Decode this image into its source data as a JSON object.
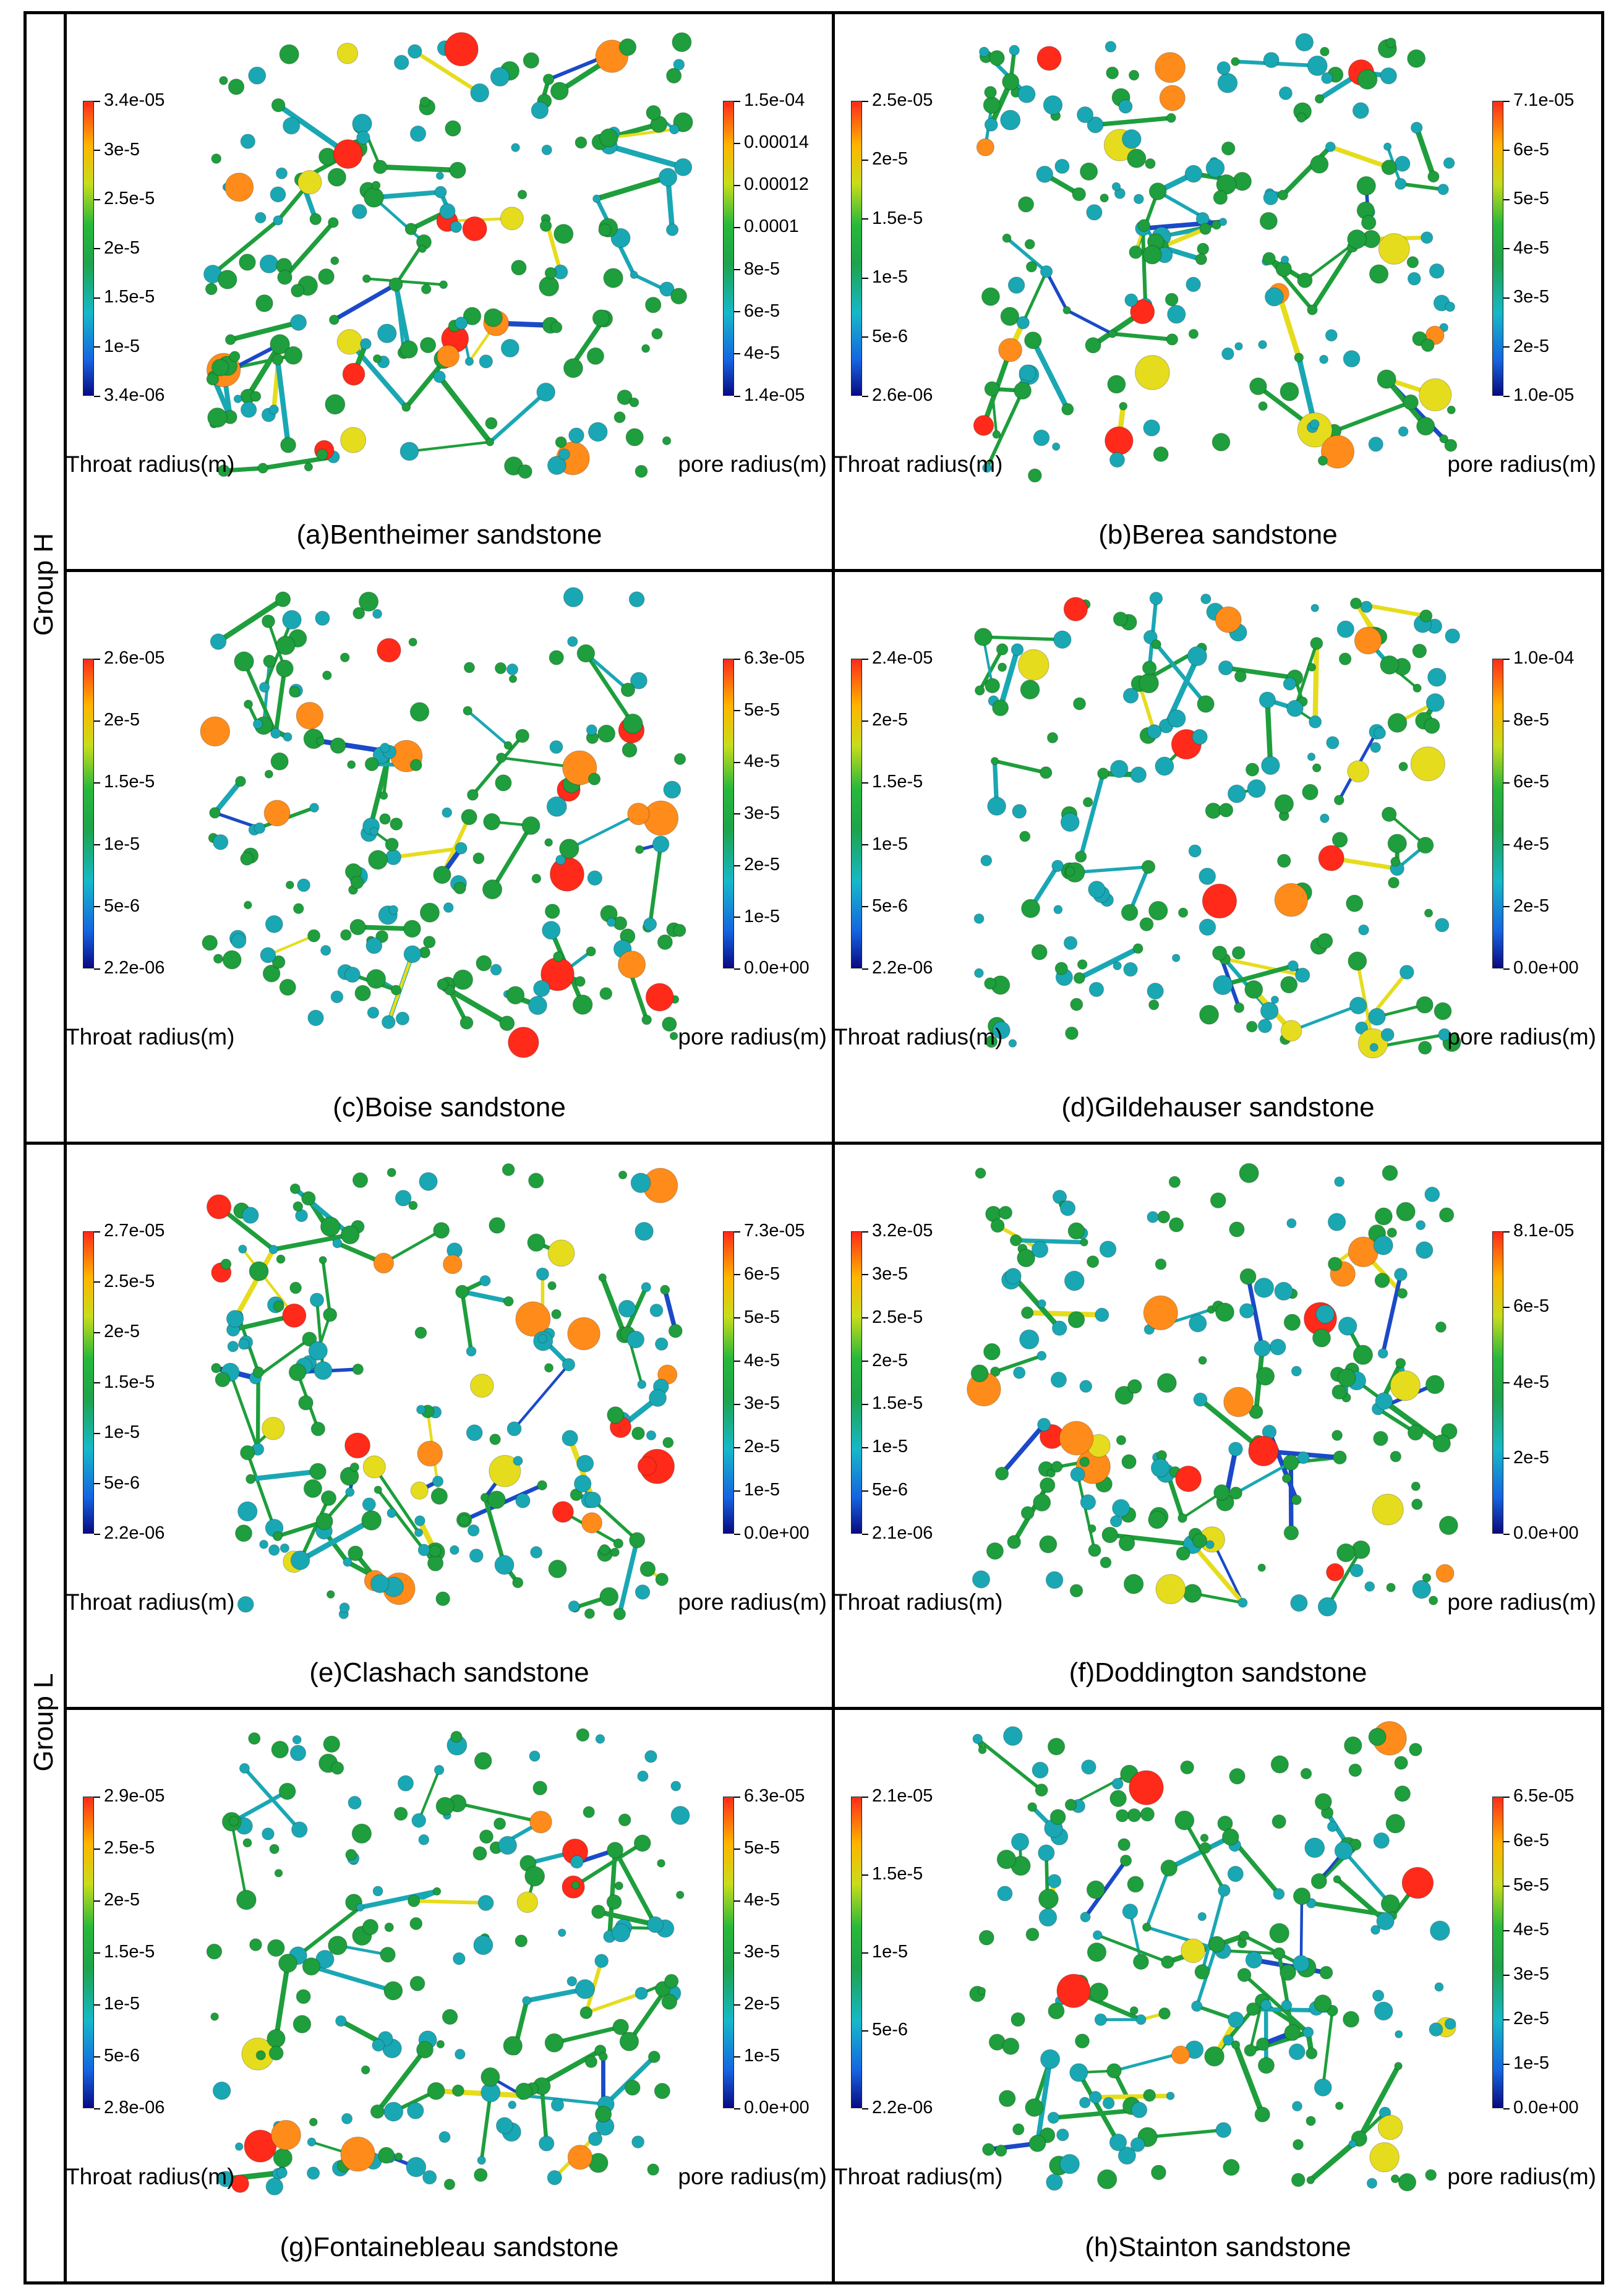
{
  "group_labels": {
    "h": "Group H",
    "l": "Group L"
  },
  "colors": {
    "red": "#ff2a1a",
    "orange": "#ff8c1a",
    "yellow": "#e6dc1e",
    "green": "#1e9e3c",
    "cyan": "#1aa7b4",
    "blue": "#1b49c8",
    "navy": "#0a0a82"
  },
  "panels": [
    {
      "caption": "(a)Bentheimer sandstone",
      "left_title": "Throat radius(m)",
      "right_title": "pore radius(m)",
      "left_ticks": [
        "3.4e-05",
        "3e-5",
        "2.5e-5",
        "2e-5",
        "1.5e-5",
        "1e-5",
        "3.4e-06"
      ],
      "right_ticks": [
        "1.5e-04",
        "0.00014",
        "0.00012",
        "0.0001",
        "8e-5",
        "6e-5",
        "4e-5",
        "1.4e-05"
      ]
    },
    {
      "caption": "(b)Berea sandstone",
      "left_title": "Throat radius(m)",
      "right_title": "pore radius(m)",
      "left_ticks": [
        "2.5e-05",
        "2e-5",
        "1.5e-5",
        "1e-5",
        "5e-6",
        "2.6e-06"
      ],
      "right_ticks": [
        "7.1e-05",
        "6e-5",
        "5e-5",
        "4e-5",
        "3e-5",
        "2e-5",
        "1.0e-05"
      ]
    },
    {
      "caption": "(c)Boise sandstone",
      "left_title": "Throat radius(m)",
      "right_title": "pore radius(m)",
      "left_ticks": [
        "2.6e-05",
        "2e-5",
        "1.5e-5",
        "1e-5",
        "5e-6",
        "2.2e-06"
      ],
      "right_ticks": [
        "6.3e-05",
        "5e-5",
        "4e-5",
        "3e-5",
        "2e-5",
        "1e-5",
        "0.0e+00"
      ]
    },
    {
      "caption": "(d)Gildehauser sandstone",
      "left_title": "Throat radius(m)",
      "right_title": "pore radius(m)",
      "left_ticks": [
        "2.4e-05",
        "2e-5",
        "1.5e-5",
        "1e-5",
        "5e-6",
        "2.2e-06"
      ],
      "right_ticks": [
        "1.0e-04",
        "8e-5",
        "6e-5",
        "4e-5",
        "2e-5",
        "0.0e+00"
      ]
    },
    {
      "caption": "(e)Clashach sandstone",
      "left_title": "Throat radius(m)",
      "right_title": "pore radius(m)",
      "left_ticks": [
        "2.7e-05",
        "2.5e-5",
        "2e-5",
        "1.5e-5",
        "1e-5",
        "5e-6",
        "2.2e-06"
      ],
      "right_ticks": [
        "7.3e-05",
        "6e-5",
        "5e-5",
        "4e-5",
        "3e-5",
        "2e-5",
        "1e-5",
        "0.0e+00"
      ]
    },
    {
      "caption": "(f)Doddington sandstone",
      "left_title": "Throat radius(m)",
      "right_title": "pore radius(m)",
      "left_ticks": [
        "3.2e-05",
        "3e-5",
        "2.5e-5",
        "2e-5",
        "1.5e-5",
        "1e-5",
        "5e-6",
        "2.1e-06"
      ],
      "right_ticks": [
        "8.1e-05",
        "6e-5",
        "4e-5",
        "2e-5",
        "0.0e+00"
      ]
    },
    {
      "caption": "(g)Fontainebleau sandstone",
      "left_title": "Throat radius(m)",
      "right_title": "pore radius(m)",
      "left_ticks": [
        "2.9e-05",
        "2.5e-5",
        "2e-5",
        "1.5e-5",
        "1e-5",
        "5e-6",
        "2.8e-06"
      ],
      "right_ticks": [
        "6.3e-05",
        "5e-5",
        "4e-5",
        "3e-5",
        "2e-5",
        "1e-5",
        "0.0e+00"
      ]
    },
    {
      "caption": "(h)Stainton sandstone",
      "left_title": "Throat radius(m)",
      "right_title": "pore radius(m)",
      "left_ticks": [
        "2.1e-05",
        "1.5e-5",
        "1e-5",
        "5e-6",
        "2.2e-06"
      ],
      "right_ticks": [
        "6.5e-05",
        "6e-5",
        "5e-5",
        "4e-5",
        "3e-5",
        "2e-5",
        "1e-5",
        "0.0e+00"
      ]
    }
  ]
}
